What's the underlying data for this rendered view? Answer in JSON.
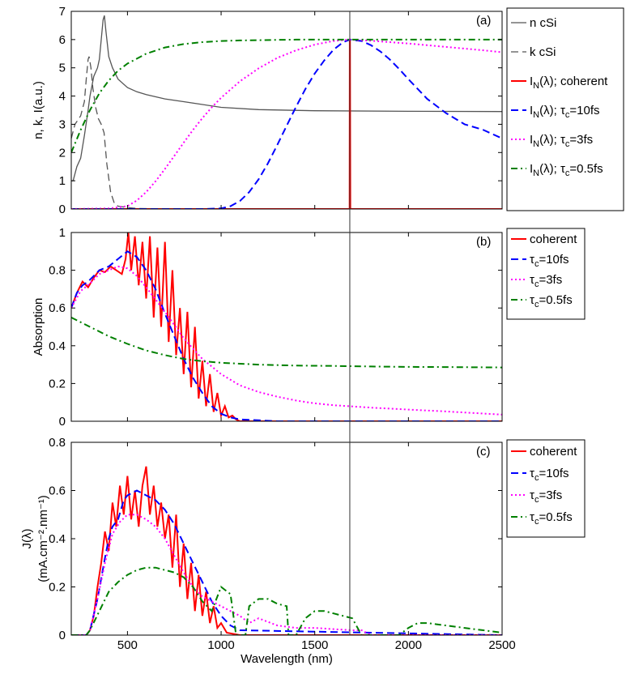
{
  "chart_data": [
    {
      "type": "line",
      "panel_label": "(a)",
      "ylabel": "n, k, I(a.u.)",
      "xlim": [
        200,
        2500
      ],
      "ylim": [
        0,
        7
      ],
      "xticks": [
        "500",
        "1000",
        "1500",
        "2000",
        "2500"
      ],
      "yticks": [
        "0",
        "1",
        "2",
        "3",
        "4",
        "5",
        "6",
        "7"
      ],
      "grid": false,
      "legend_position": "outside-right",
      "series": [
        {
          "name": "n cSi",
          "color": "#555555",
          "style": "solid",
          "x": [
            200,
            210,
            230,
            250,
            270,
            290,
            300,
            320,
            340,
            350,
            360,
            370,
            377,
            385,
            400,
            420,
            450,
            500,
            550,
            600,
            700,
            800,
            1000,
            1200,
            1500,
            2000,
            2500
          ],
          "y": [
            1.0,
            1.0,
            1.5,
            1.8,
            2.6,
            3.5,
            4.0,
            4.7,
            5.0,
            5.3,
            6.0,
            6.7,
            6.85,
            6.3,
            5.4,
            5.0,
            4.6,
            4.3,
            4.15,
            4.05,
            3.9,
            3.8,
            3.6,
            3.52,
            3.48,
            3.46,
            3.45
          ]
        },
        {
          "name": "k cSi",
          "color": "#555555",
          "style": "dashed",
          "x": [
            200,
            220,
            250,
            270,
            280,
            290,
            295,
            305,
            315,
            330,
            345,
            360,
            375,
            390,
            410,
            430,
            450,
            500,
            550,
            700,
            2500
          ],
          "y": [
            2.5,
            3.0,
            3.3,
            3.8,
            4.6,
            5.3,
            5.4,
            5.0,
            4.3,
            3.6,
            3.2,
            3.0,
            2.7,
            1.6,
            0.6,
            0.2,
            0.1,
            0.05,
            0.02,
            0.0,
            0.0
          ]
        },
        {
          "name": "coherent",
          "color": "#ff0000",
          "style": "solid",
          "x": [
            200,
            1686,
            1687,
            1688,
            1690,
            2500
          ],
          "y": [
            0,
            0,
            6,
            6,
            0,
            0
          ]
        },
        {
          "name": "τc=10fs",
          "color": "#0000ff",
          "style": "dashed",
          "x": [
            200,
            900,
            1000,
            1050,
            1100,
            1150,
            1200,
            1250,
            1300,
            1350,
            1400,
            1450,
            1500,
            1550,
            1600,
            1650,
            1687,
            1750,
            1800,
            1850,
            1900,
            1950,
            2000,
            2100,
            2200,
            2300,
            2400,
            2500
          ],
          "y": [
            0,
            0,
            0.02,
            0.1,
            0.28,
            0.6,
            1.05,
            1.62,
            2.27,
            2.95,
            3.62,
            4.25,
            4.8,
            5.26,
            5.64,
            5.9,
            6.0,
            5.95,
            5.8,
            5.58,
            5.3,
            4.96,
            4.6,
            3.9,
            3.4,
            3.0,
            2.8,
            2.5
          ]
        },
        {
          "name": "τc=3fs",
          "color": "#ff00ff",
          "style": "dotted",
          "x": [
            200,
            400,
            500,
            550,
            600,
            650,
            700,
            750,
            800,
            850,
            900,
            950,
            1000,
            1100,
            1200,
            1300,
            1400,
            1500,
            1600,
            1687,
            1800,
            2000,
            2200,
            2400,
            2500
          ],
          "y": [
            0,
            0.02,
            0.1,
            0.3,
            0.6,
            0.98,
            1.42,
            1.88,
            2.35,
            2.8,
            3.22,
            3.6,
            3.94,
            4.52,
            4.98,
            5.35,
            5.62,
            5.82,
            5.95,
            6.0,
            5.96,
            5.86,
            5.74,
            5.62,
            5.55
          ]
        },
        {
          "name": "τc=0.5fs",
          "color": "#008000",
          "style": "dashdot",
          "x": [
            200,
            250,
            300,
            350,
            400,
            450,
            500,
            600,
            700,
            800,
            900,
            1000,
            1100,
            1200,
            1300,
            1400,
            1500,
            1600,
            1700,
            1800,
            2000,
            2200,
            2500
          ],
          "y": [
            2.0,
            2.8,
            3.5,
            4.1,
            4.55,
            4.9,
            5.15,
            5.5,
            5.72,
            5.84,
            5.91,
            5.95,
            5.97,
            5.98,
            5.99,
            6.0,
            6.0,
            6.0,
            6.0,
            6.0,
            6.0,
            6.0,
            6.0
          ]
        }
      ]
    },
    {
      "type": "line",
      "panel_label": "(b)",
      "ylabel": "Absorption",
      "xlim": [
        200,
        2500
      ],
      "ylim": [
        0,
        1
      ],
      "xticks": [
        "500",
        "1000",
        "1500",
        "2000",
        "2500"
      ],
      "yticks": [
        "0",
        "0.2",
        "0.4",
        "0.6",
        "0.8",
        "1"
      ],
      "grid": false,
      "legend_position": "outside-right",
      "series": [
        {
          "name": "coherent",
          "color": "#ff0000",
          "style": "solid",
          "x": [
            200,
            230,
            260,
            290,
            320,
            350,
            380,
            410,
            440,
            470,
            490,
            505,
            520,
            540,
            560,
            580,
            600,
            620,
            640,
            660,
            680,
            700,
            720,
            740,
            760,
            780,
            800,
            820,
            840,
            860,
            880,
            900,
            920,
            940,
            960,
            980,
            1000,
            1020,
            1040,
            1060,
            1080,
            1100,
            1150,
            2500
          ],
          "y": [
            0.6,
            0.68,
            0.74,
            0.71,
            0.76,
            0.8,
            0.79,
            0.82,
            0.8,
            0.78,
            0.86,
            1.0,
            0.8,
            0.98,
            0.72,
            0.95,
            0.65,
            0.98,
            0.55,
            0.92,
            0.5,
            0.95,
            0.42,
            0.8,
            0.35,
            0.6,
            0.25,
            0.58,
            0.18,
            0.5,
            0.12,
            0.32,
            0.08,
            0.25,
            0.05,
            0.15,
            0.03,
            0.08,
            0.02,
            0.03,
            0.01,
            0.0,
            0.0,
            0.0
          ]
        },
        {
          "name": "τc=10fs",
          "color": "#0000ff",
          "style": "dashed",
          "x": [
            200,
            230,
            260,
            290,
            320,
            350,
            400,
            450,
            500,
            550,
            600,
            650,
            700,
            750,
            800,
            850,
            900,
            950,
            1000,
            1050,
            1100,
            1200,
            1300,
            1500,
            2500
          ],
          "y": [
            0.6,
            0.68,
            0.72,
            0.74,
            0.77,
            0.8,
            0.82,
            0.86,
            0.9,
            0.87,
            0.8,
            0.7,
            0.57,
            0.45,
            0.33,
            0.23,
            0.15,
            0.08,
            0.04,
            0.02,
            0.01,
            0.005,
            0.0,
            0.0,
            0.0
          ]
        },
        {
          "name": "τc=3fs",
          "color": "#ff00ff",
          "style": "dotted",
          "x": [
            200,
            250,
            300,
            350,
            400,
            450,
            500,
            550,
            600,
            700,
            800,
            900,
            1000,
            1100,
            1200,
            1300,
            1400,
            1500,
            1600,
            1800,
            2000,
            2200,
            2500
          ],
          "y": [
            0.6,
            0.69,
            0.73,
            0.78,
            0.8,
            0.82,
            0.81,
            0.77,
            0.71,
            0.58,
            0.44,
            0.33,
            0.25,
            0.19,
            0.155,
            0.13,
            0.11,
            0.095,
            0.085,
            0.072,
            0.062,
            0.052,
            0.035
          ]
        },
        {
          "name": "τc=0.5fs",
          "color": "#008000",
          "style": "dashdot",
          "x": [
            200,
            300,
            400,
            500,
            600,
            700,
            800,
            900,
            1000,
            1200,
            1400,
            1600,
            1800,
            2000,
            2200,
            2500
          ],
          "y": [
            0.55,
            0.5,
            0.45,
            0.41,
            0.375,
            0.35,
            0.33,
            0.318,
            0.31,
            0.3,
            0.295,
            0.293,
            0.29,
            0.288,
            0.287,
            0.285
          ]
        }
      ]
    },
    {
      "type": "line",
      "panel_label": "(c)",
      "ylabel": "J(λ) (mA.cm⁻².nm⁻¹)",
      "xlabel": "Wavelength (nm)",
      "xlim": [
        200,
        2500
      ],
      "ylim": [
        0,
        0.8
      ],
      "xticks": [
        "500",
        "1000",
        "1500",
        "2000",
        "2500"
      ],
      "yticks": [
        "0",
        "0.2",
        "0.4",
        "0.6",
        "0.8"
      ],
      "grid": false,
      "legend_position": "outside-right",
      "series": [
        {
          "name": "coherent",
          "color": "#ff0000",
          "style": "solid",
          "x": [
            200,
            280,
            300,
            320,
            340,
            360,
            380,
            400,
            420,
            440,
            460,
            480,
            500,
            520,
            540,
            560,
            580,
            600,
            620,
            640,
            660,
            680,
            700,
            720,
            740,
            760,
            780,
            800,
            820,
            840,
            860,
            880,
            900,
            920,
            940,
            960,
            980,
            1000,
            1030,
            1100,
            2500
          ],
          "y": [
            0,
            0,
            0.02,
            0.08,
            0.2,
            0.3,
            0.43,
            0.35,
            0.55,
            0.45,
            0.62,
            0.5,
            0.66,
            0.48,
            0.6,
            0.45,
            0.62,
            0.7,
            0.5,
            0.62,
            0.45,
            0.55,
            0.4,
            0.5,
            0.28,
            0.5,
            0.2,
            0.38,
            0.15,
            0.3,
            0.1,
            0.25,
            0.08,
            0.18,
            0.05,
            0.12,
            0.03,
            0.05,
            0.01,
            0.0,
            0.0
          ]
        },
        {
          "name": "τc=10fs",
          "color": "#0000ff",
          "style": "dashed",
          "x": [
            200,
            280,
            300,
            340,
            380,
            400,
            420,
            450,
            480,
            500,
            550,
            600,
            650,
            700,
            750,
            800,
            850,
            900,
            950,
            1000,
            1050,
            1100,
            2500
          ],
          "y": [
            0,
            0,
            0.02,
            0.15,
            0.32,
            0.4,
            0.45,
            0.48,
            0.56,
            0.58,
            0.6,
            0.58,
            0.56,
            0.52,
            0.46,
            0.38,
            0.3,
            0.22,
            0.14,
            0.08,
            0.04,
            0.02,
            0.0
          ]
        },
        {
          "name": "τc=3fs",
          "color": "#ff00ff",
          "style": "dotted",
          "x": [
            200,
            280,
            300,
            340,
            380,
            420,
            460,
            500,
            550,
            600,
            650,
            700,
            750,
            800,
            850,
            900,
            1000,
            1050,
            1100,
            1150,
            1200,
            1300,
            1400,
            1500,
            1600,
            1700,
            1750,
            1800,
            2000,
            2200,
            2500
          ],
          "y": [
            0,
            0,
            0.02,
            0.15,
            0.3,
            0.42,
            0.47,
            0.5,
            0.5,
            0.48,
            0.45,
            0.4,
            0.33,
            0.26,
            0.2,
            0.16,
            0.12,
            0.1,
            0.08,
            0.05,
            0.07,
            0.04,
            0.03,
            0.03,
            0.025,
            0.02,
            0.02,
            0.0,
            0.0,
            0.0,
            0.0
          ]
        },
        {
          "name": "τc=0.5fs",
          "color": "#008000",
          "style": "dashdot",
          "x": [
            200,
            280,
            300,
            350,
            400,
            450,
            500,
            550,
            600,
            650,
            700,
            750,
            800,
            850,
            900,
            950,
            1000,
            1050,
            1080,
            1130,
            1150,
            1200,
            1250,
            1300,
            1350,
            1360,
            1400,
            1450,
            1500,
            1550,
            1600,
            1650,
            1700,
            1750,
            1800,
            1850,
            1900,
            1950,
            2000,
            2050,
            2100,
            2150,
            2200,
            2250,
            2300,
            2350,
            2400,
            2450,
            2500
          ],
          "y": [
            0,
            0,
            0.02,
            0.1,
            0.18,
            0.22,
            0.25,
            0.27,
            0.28,
            0.28,
            0.27,
            0.26,
            0.24,
            0.2,
            0.14,
            0.1,
            0.2,
            0.17,
            0.0,
            0.0,
            0.12,
            0.15,
            0.15,
            0.13,
            0.12,
            0.0,
            0.0,
            0.07,
            0.1,
            0.1,
            0.09,
            0.08,
            0.07,
            0.0,
            0.0,
            0.0,
            0.0,
            0.0,
            0.03,
            0.05,
            0.05,
            0.045,
            0.04,
            0.035,
            0.03,
            0.025,
            0.02,
            0.015,
            0.01
          ]
        }
      ]
    }
  ],
  "marker_line": {
    "x": 1687,
    "color": "#333333"
  }
}
